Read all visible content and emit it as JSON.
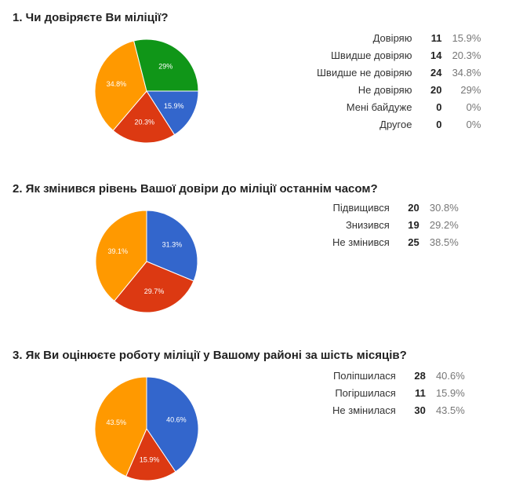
{
  "questions": [
    {
      "title": "1. Чи довіряєте Ви міліції?",
      "rows": [
        {
          "label": "Довіряю",
          "count": "11",
          "percent": "15.9%"
        },
        {
          "label": "Швидше довіряю",
          "count": "14",
          "percent": "20.3%"
        },
        {
          "label": "Швидше не довіряю",
          "count": "24",
          "percent": "34.8%"
        },
        {
          "label": "Не довіряю",
          "count": "20",
          "percent": "29%"
        },
        {
          "label": "Мені байдуже",
          "count": "0",
          "percent": "0%"
        },
        {
          "label": "Другое",
          "count": "0",
          "percent": "0%"
        }
      ]
    },
    {
      "title": "2. Як змінився рівень Вашої довіри до міліції останнім часом?",
      "rows": [
        {
          "label": "Підвищився",
          "count": "20",
          "percent": "30.8%"
        },
        {
          "label": "Знизився",
          "count": "19",
          "percent": "29.2%"
        },
        {
          "label": "Не змінився",
          "count": "25",
          "percent": "38.5%"
        }
      ]
    },
    {
      "title": "3. Як Ви оцінюєте роботу міліції у Вашому районі за шість місяців?",
      "rows": [
        {
          "label": "Поліпшилася",
          "count": "28",
          "percent": "40.6%"
        },
        {
          "label": "Погіршилася",
          "count": "11",
          "percent": "15.9%"
        },
        {
          "label": "Не змінилася",
          "count": "30",
          "percent": "43.5%"
        }
      ]
    }
  ],
  "chart_data": [
    {
      "type": "pie",
      "title": "1. Чи довіряєте Ви міліції?",
      "slices": [
        {
          "name": "Довіряю",
          "value": 11,
          "label": "15.9%",
          "color": "#3366cc"
        },
        {
          "name": "Швидше довіряю",
          "value": 14,
          "label": "20.3%",
          "color": "#dc3912"
        },
        {
          "name": "Швидше не довіряю",
          "value": 24,
          "label": "34.8%",
          "color": "#ff9900"
        },
        {
          "name": "Не довіряю",
          "value": 20,
          "label": "29%",
          "color": "#109618"
        }
      ],
      "start_angle_deg": 90
    },
    {
      "type": "pie",
      "title": "2. Як змінився рівень Вашої довіри до міліції останнім часом?",
      "slices": [
        {
          "name": "Підвищився",
          "value": 20,
          "label": "31.3%",
          "color": "#3366cc"
        },
        {
          "name": "Знизився",
          "value": 19,
          "label": "29.7%",
          "color": "#dc3912"
        },
        {
          "name": "Не змінився",
          "value": 25,
          "label": "39.1%",
          "color": "#ff9900"
        }
      ],
      "start_angle_deg": 0
    },
    {
      "type": "pie",
      "title": "3. Як Ви оцінюєте роботу міліції у Вашому районі за шість місяців?",
      "slices": [
        {
          "name": "Поліпшилася",
          "value": 28,
          "label": "40.6%",
          "color": "#3366cc"
        },
        {
          "name": "Погіршилася",
          "value": 11,
          "label": "15.9%",
          "color": "#dc3912"
        },
        {
          "name": "Не змінилася",
          "value": 30,
          "label": "43.5%",
          "color": "#ff9900"
        }
      ],
      "start_angle_deg": 0
    }
  ]
}
